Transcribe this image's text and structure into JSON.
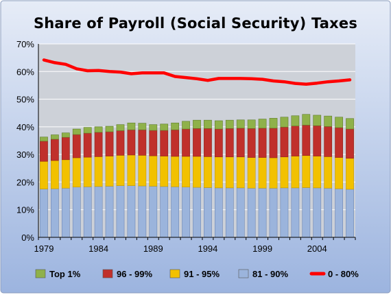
{
  "colors": {
    "background_top": "#dfe7f4",
    "background_bottom": "#9fb6e0",
    "plot_area": "#cfd3d9",
    "top1": "#8fb14a",
    "p96_99": "#c0302b",
    "p91_95": "#f2c100",
    "p81_90": "#9bb4dc",
    "p0_80_line": "#ff0000"
  },
  "chart_data": {
    "type": "bar",
    "stacked": true,
    "title": "Share of Payroll  (Social Security) Taxes",
    "xlabel": "",
    "ylabel": "",
    "ylim": [
      0,
      70
    ],
    "yticks": [
      "0%",
      "10%",
      "20%",
      "30%",
      "40%",
      "50%",
      "60%",
      "70%"
    ],
    "x_tick_labels": [
      "1979",
      "1984",
      "1989",
      "1994",
      "1999",
      "2004"
    ],
    "grid": true,
    "legend_position": "bottom",
    "categories": [
      1979,
      1980,
      1981,
      1982,
      1983,
      1984,
      1985,
      1986,
      1987,
      1988,
      1989,
      1990,
      1991,
      1992,
      1993,
      1994,
      1995,
      1996,
      1997,
      1998,
      1999,
      2000,
      2001,
      2002,
      2003,
      2004,
      2005,
      2006,
      2007
    ],
    "series": [
      {
        "name": "81 - 90%",
        "kind": "bar",
        "values": [
          17.5,
          17.6,
          17.8,
          18.2,
          18.3,
          18.4,
          18.5,
          18.7,
          18.7,
          18.6,
          18.5,
          18.4,
          18.3,
          18.2,
          18.1,
          18.0,
          17.9,
          17.9,
          17.9,
          17.8,
          17.8,
          17.8,
          17.9,
          17.9,
          18.0,
          17.9,
          17.8,
          17.6,
          17.4
        ]
      },
      {
        "name": "91 - 95%",
        "kind": "bar",
        "values": [
          10.0,
          10.2,
          10.3,
          10.6,
          10.7,
          10.8,
          10.9,
          11.0,
          11.1,
          11.1,
          11.0,
          11.0,
          11.0,
          11.1,
          11.2,
          11.2,
          11.2,
          11.2,
          11.2,
          11.1,
          11.1,
          11.0,
          11.2,
          11.5,
          11.6,
          11.5,
          11.4,
          11.3,
          11.2
        ]
      },
      {
        "name": "96 - 99%",
        "kind": "bar",
        "values": [
          7.3,
          7.7,
          8.1,
          8.4,
          8.7,
          8.8,
          8.8,
          8.9,
          9.1,
          9.2,
          9.2,
          9.3,
          9.6,
          9.9,
          10.1,
          10.2,
          10.1,
          10.3,
          10.4,
          10.5,
          10.6,
          10.7,
          10.8,
          10.9,
          11.0,
          11.0,
          10.9,
          10.8,
          10.6
        ]
      },
      {
        "name": "Top 1%",
        "kind": "bar",
        "values": [
          1.5,
          1.6,
          1.6,
          2.0,
          2.1,
          2.0,
          2.0,
          2.2,
          2.5,
          2.4,
          2.1,
          2.3,
          2.5,
          2.8,
          3.0,
          3.0,
          3.0,
          3.0,
          3.0,
          3.1,
          3.3,
          3.6,
          3.6,
          3.7,
          3.9,
          3.8,
          3.8,
          3.8,
          3.8
        ]
      },
      {
        "name": "0 - 80%",
        "kind": "line",
        "values": [
          64.2,
          63.2,
          62.6,
          61.0,
          60.3,
          60.4,
          60.0,
          59.8,
          59.2,
          59.5,
          59.5,
          59.5,
          58.2,
          57.8,
          57.4,
          56.8,
          57.5,
          57.5,
          57.5,
          57.4,
          57.2,
          56.6,
          56.3,
          55.7,
          55.4,
          55.8,
          56.3,
          56.6,
          57.0
        ]
      }
    ]
  },
  "legend": [
    {
      "label": "Top 1%",
      "swatch": "top1"
    },
    {
      "label": "96 - 99%",
      "swatch": "p96_99"
    },
    {
      "label": "91 - 95%",
      "swatch": "p91_95"
    },
    {
      "label": "81 - 90%",
      "swatch": "p81_90"
    },
    {
      "label": "0 - 80%",
      "swatch": "p0_80_line"
    }
  ]
}
